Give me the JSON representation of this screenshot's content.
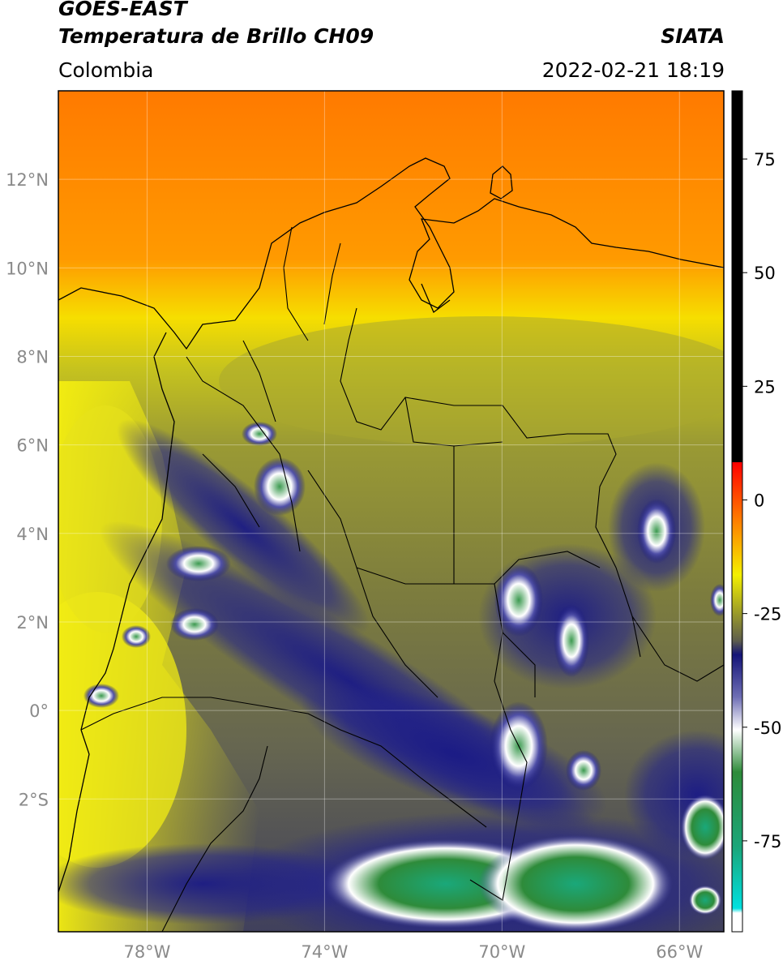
{
  "header": {
    "satellite": "GOES-EAST",
    "product": "Temperatura de Brillo CH09",
    "region": "Colombia",
    "agency": "SIATA",
    "datetime": "2022-02-21 18:19"
  },
  "map": {
    "lon_range": [
      -80,
      -65
    ],
    "lat_range": [
      -5,
      14
    ],
    "lon_ticks": [
      {
        "value": -78,
        "label": "78°W"
      },
      {
        "value": -74,
        "label": "74°W"
      },
      {
        "value": -70,
        "label": "70°W"
      },
      {
        "value": -66,
        "label": "66°W"
      }
    ],
    "lat_ticks": [
      {
        "value": 12,
        "label": "12°N"
      },
      {
        "value": 10,
        "label": "10°N"
      },
      {
        "value": 8,
        "label": "8°N"
      },
      {
        "value": 6,
        "label": "6°N"
      },
      {
        "value": 4,
        "label": "4°N"
      },
      {
        "value": 2,
        "label": "2°N"
      },
      {
        "value": 0,
        "label": "0°"
      },
      {
        "value": -2,
        "label": "2°S"
      }
    ],
    "grid": true
  },
  "colorbar": {
    "ticks": [
      {
        "value": 75,
        "label": "75"
      },
      {
        "value": 50,
        "label": "50"
      },
      {
        "value": 25,
        "label": "25"
      },
      {
        "value": 0,
        "label": "0"
      },
      {
        "value": -25,
        "label": "-25"
      },
      {
        "value": -50,
        "label": "-50"
      },
      {
        "value": -75,
        "label": "-75"
      }
    ],
    "range": [
      -95,
      90
    ],
    "colors": {
      "black": "#000000",
      "red": "#e8160c",
      "orange": "#ff8a00",
      "yellow": "#f4f000",
      "olive": "#8d8d2e",
      "gray": "#5c5c4a",
      "navy": "#14147c",
      "white": "#ffffff",
      "green": "#2e8b3a",
      "cyan": "#00e0e0"
    }
  }
}
